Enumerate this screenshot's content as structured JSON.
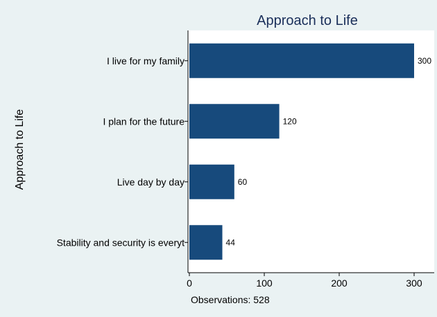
{
  "chart_data": {
    "type": "bar",
    "orientation": "horizontal",
    "title": "Approach to Life",
    "ylabel": "Approach to Life",
    "xlabel": "",
    "categories": [
      "I live for my family",
      "I plan for the future",
      "Live day by day",
      "Stability and security is everyt"
    ],
    "values": [
      300,
      120,
      60,
      44
    ],
    "value_labels": [
      "300",
      "120",
      "60",
      "44"
    ],
    "xlim": [
      0,
      300
    ],
    "xticks": [
      0,
      100,
      200,
      300
    ],
    "xtick_labels": [
      "0",
      "100",
      "200",
      "300"
    ],
    "grid": false,
    "legend": "none",
    "note": "Observations: 528",
    "bar_color": "#174a7c",
    "plot_background": "#ffffff",
    "page_background": "#eaf2f3"
  }
}
